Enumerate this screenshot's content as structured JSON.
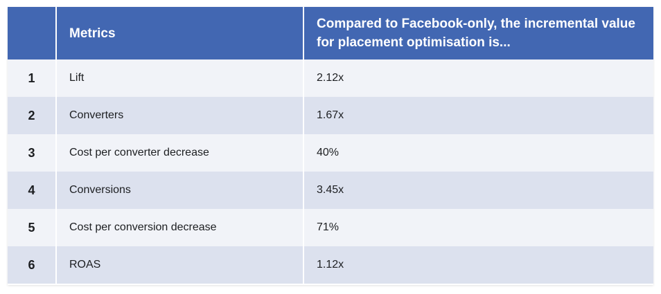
{
  "colors": {
    "header_bg": "#4267b2",
    "row_light": "#f1f3f8",
    "row_dark": "#dce1ee",
    "header_text": "#ffffff"
  },
  "table": {
    "headers": {
      "index": "",
      "metric": "Metrics",
      "value": "Compared to Facebook-only, the incremental value for placement optimisation is..."
    },
    "rows": [
      {
        "index": "1",
        "metric": "Lift",
        "value": "2.12x"
      },
      {
        "index": "2",
        "metric": "Converters",
        "value": "1.67x"
      },
      {
        "index": "3",
        "metric": "Cost per converter decrease",
        "value": "40%"
      },
      {
        "index": "4",
        "metric": "Conversions",
        "value": "3.45x"
      },
      {
        "index": "5",
        "metric": "Cost per conversion decrease",
        "value": "71%"
      },
      {
        "index": "6",
        "metric": "ROAS",
        "value": "1.12x"
      }
    ]
  }
}
